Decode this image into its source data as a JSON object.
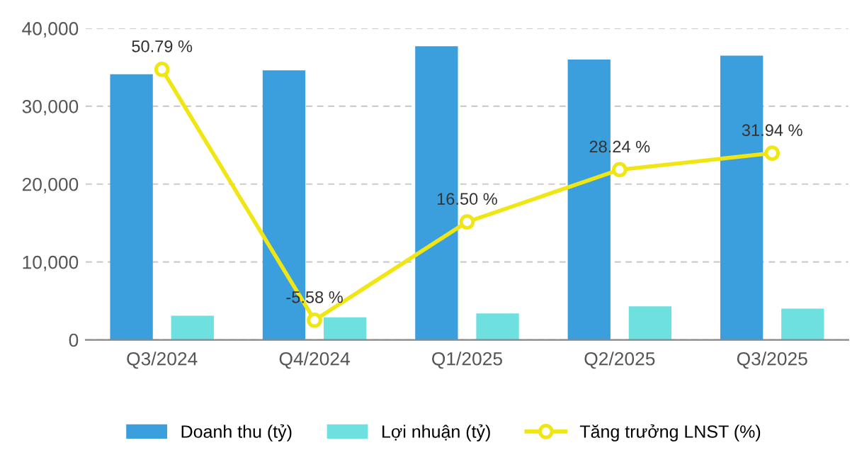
{
  "chart_data": {
    "type": "bar",
    "categories": [
      "Q3/2024",
      "Q4/2024",
      "Q1/2025",
      "Q2/2025",
      "Q3/2025"
    ],
    "series": [
      {
        "name": "Doanh thu (tỷ)",
        "color": "#3a9fdc",
        "values": [
          34100,
          34600,
          37700,
          36000,
          36500
        ]
      },
      {
        "name": "Lợi nhuận (tỷ)",
        "color": "#6ee0e0",
        "values": [
          3100,
          2900,
          3400,
          4300,
          4000
        ]
      },
      {
        "name": "Tăng trưởng LNST (%)",
        "type": "line",
        "axis": "y2",
        "color": "#f0e614",
        "marker": "circle",
        "values": [
          50.79,
          -5.58,
          16.5,
          28.24,
          31.94
        ],
        "value_labels": [
          "50.79 %",
          "-5.58 %",
          "16.50 %",
          "28.24 %",
          "31.94 %"
        ]
      }
    ],
    "ylim": [
      0,
      40000
    ],
    "yticks": [
      0,
      {
        "value": 10000,
        "label": "10,000"
      },
      {
        "value": 20000,
        "label": "20,000"
      },
      {
        "value": 30000,
        "label": "30,000"
      },
      {
        "value": 40000,
        "label": "40,000"
      }
    ],
    "y2lim": [
      -10,
      60
    ],
    "grid": "y",
    "legend": "bottom"
  }
}
